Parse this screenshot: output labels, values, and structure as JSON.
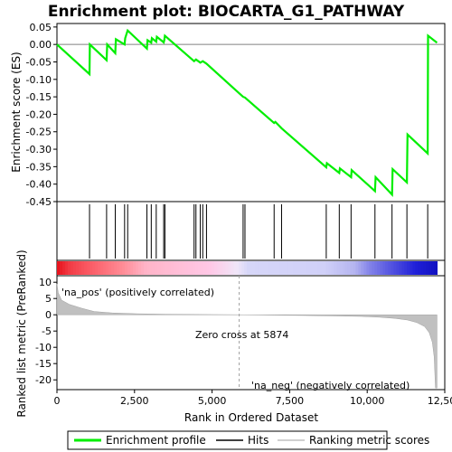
{
  "chart_data": {
    "type": "line",
    "title": "Enrichment plot: BIOCARTA_G1_PATHWAY",
    "xlabel": "Rank in Ordered Dataset",
    "ylabel_top": "Enrichment score (ES)",
    "ylabel_bottom": "Ranked list metric (PreRanked)",
    "xlim": [
      0,
      12500
    ],
    "ylim_top": [
      -0.45,
      0.06
    ],
    "ylim_bottom": [
      -23,
      12
    ],
    "x_ticks": [
      0,
      2500,
      5000,
      7500,
      10000,
      12500
    ],
    "x_tick_labels": [
      "0",
      "2,500",
      "5,000",
      "7,500",
      "10,000",
      "12,500"
    ],
    "y_ticks_top": [
      0.05,
      0.0,
      -0.05,
      -0.1,
      -0.15,
      -0.2,
      -0.25,
      -0.3,
      -0.35,
      -0.4,
      -0.45
    ],
    "y_tick_labels_top": [
      "0.05",
      "0.00",
      "-0.05",
      "-0.10",
      "-0.15",
      "-0.20",
      "-0.25",
      "-0.30",
      "-0.35",
      "-0.40",
      "-0.45"
    ],
    "y_ticks_bottom": [
      10,
      5,
      0,
      -5,
      -10,
      -15,
      -20
    ],
    "y_tick_labels_bottom": [
      "10",
      "5",
      "0",
      "-5",
      "-10",
      "-15",
      "-20"
    ],
    "es_profile": [
      [
        0,
        0.0
      ],
      [
        1050,
        -0.085
      ],
      [
        1060,
        0.0
      ],
      [
        1600,
        -0.045
      ],
      [
        1620,
        0.0
      ],
      [
        1880,
        -0.025
      ],
      [
        1900,
        0.015
      ],
      [
        2180,
        0.0
      ],
      [
        2200,
        0.018
      ],
      [
        2280,
        0.04
      ],
      [
        2900,
        -0.012
      ],
      [
        2920,
        0.012
      ],
      [
        3040,
        0.005
      ],
      [
        3060,
        0.018
      ],
      [
        3200,
        0.008
      ],
      [
        3220,
        0.022
      ],
      [
        3440,
        0.006
      ],
      [
        3460,
        0.012
      ],
      [
        3480,
        0.025
      ],
      [
        4420,
        -0.048
      ],
      [
        4480,
        -0.043
      ],
      [
        4620,
        -0.052
      ],
      [
        4700,
        -0.048
      ],
      [
        4820,
        -0.055
      ],
      [
        6000,
        -0.15
      ],
      [
        6060,
        -0.152
      ],
      [
        7000,
        -0.225
      ],
      [
        7040,
        -0.222
      ],
      [
        7240,
        -0.24
      ],
      [
        8680,
        -0.352
      ],
      [
        8700,
        -0.34
      ],
      [
        9100,
        -0.368
      ],
      [
        9120,
        -0.355
      ],
      [
        9480,
        -0.38
      ],
      [
        9500,
        -0.36
      ],
      [
        10250,
        -0.42
      ],
      [
        10270,
        -0.38
      ],
      [
        10800,
        -0.43
      ],
      [
        10820,
        -0.357
      ],
      [
        11280,
        -0.395
      ],
      [
        11300,
        -0.258
      ],
      [
        11950,
        -0.312
      ],
      [
        11960,
        0.025
      ],
      [
        12250,
        0.005
      ]
    ],
    "hits": [
      1050,
      1600,
      1880,
      2180,
      2280,
      2900,
      3040,
      3200,
      3440,
      3480,
      4420,
      4480,
      4620,
      4700,
      4820,
      6000,
      6060,
      7000,
      7240,
      8680,
      9100,
      9480,
      10250,
      10800,
      11280,
      11950
    ],
    "metric_curve": [
      [
        0,
        9.5
      ],
      [
        40,
        6.8
      ],
      [
        150,
        4.5
      ],
      [
        400,
        3.2
      ],
      [
        800,
        2.0
      ],
      [
        1200,
        1.0
      ],
      [
        1800,
        0.55
      ],
      [
        2600,
        0.3
      ],
      [
        3500,
        0.18
      ],
      [
        4600,
        0.08
      ],
      [
        5874,
        0.0
      ],
      [
        7000,
        -0.12
      ],
      [
        8000,
        -0.22
      ],
      [
        9000,
        -0.35
      ],
      [
        9800,
        -0.5
      ],
      [
        10400,
        -0.75
      ],
      [
        10900,
        -1.1
      ],
      [
        11300,
        -1.6
      ],
      [
        11600,
        -2.4
      ],
      [
        11850,
        -3.6
      ],
      [
        12000,
        -5.5
      ],
      [
        12100,
        -8.5
      ],
      [
        12160,
        -13.0
      ],
      [
        12200,
        -22.5
      ],
      [
        12250,
        -22.5
      ]
    ],
    "zero_cross_label": "Zero cross at 5874",
    "zero_cross_x": 5874,
    "pos_label": "'na_pos' (positively correlated)",
    "neg_label": "'na_neg' (negatively correlated)",
    "legend": {
      "enrichment": "Enrichment profile",
      "hits": "Hits",
      "metric": "Ranking metric scores"
    },
    "colors": {
      "profile": "#00ee00",
      "hits": "#000000",
      "metric": "#c0c0c0",
      "pos_text": "#cc0000",
      "neg_text": "#0000cc"
    }
  }
}
